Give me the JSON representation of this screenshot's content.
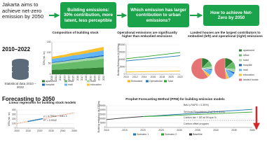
{
  "header": {
    "goal": "Jakarta aims to achieve net-zero emission by 2050",
    "steps": [
      "Building emissions: 30% contribution, more latent, less perceptible",
      "Which emission has larger contribution to urban emissions?",
      "How to achieve Net-Zero by 2050"
    ]
  },
  "section_1": {
    "title": "2010–2022",
    "source": "Statistical data 2010 – 2022"
  },
  "section_2": {
    "title": "Forecasting to 2050"
  },
  "charts": [
    {
      "type": "stacked_area",
      "title": "Composition of building stock",
      "y_label": "GFA (mil. m²)",
      "x": [
        2010,
        2011,
        2012,
        2013,
        2014,
        2015,
        2016,
        2017,
        2018,
        2019,
        2020,
        2021,
        2022
      ],
      "xlim": [
        2010,
        2022
      ],
      "xticks": [
        2010,
        2011,
        2012,
        2013,
        2014,
        2015,
        2016,
        2017,
        2018,
        2019,
        2020,
        2021,
        2022
      ],
      "ylim": [
        0,
        150
      ],
      "yticks": [
        0,
        50,
        100,
        150
      ],
      "series": [
        {
          "name": "apartment",
          "color": "#2e7d32",
          "values": [
            20,
            21,
            22,
            23,
            24,
            25,
            26,
            27,
            28,
            29,
            30,
            31,
            32
          ]
        },
        {
          "name": "office",
          "color": "#66bb6a",
          "values": [
            25,
            26,
            27,
            28,
            30,
            31,
            32,
            34,
            35,
            36,
            37,
            39,
            40
          ]
        },
        {
          "name": "hotel",
          "color": "#a5d6a7",
          "values": [
            8,
            8,
            9,
            9,
            9,
            10,
            10,
            10,
            11,
            11,
            11,
            12,
            12
          ]
        },
        {
          "name": "hospital",
          "color": "#1565c0",
          "values": [
            3,
            3,
            3,
            3,
            4,
            4,
            4,
            4,
            4,
            5,
            5,
            5,
            5
          ]
        },
        {
          "name": "mall",
          "color": "#64b5f6",
          "values": [
            15,
            16,
            16,
            17,
            17,
            18,
            18,
            19,
            19,
            20,
            21,
            21,
            22
          ]
        },
        {
          "name": "education",
          "color": "#fbc02d",
          "values": [
            10,
            10,
            11,
            11,
            12,
            12,
            13,
            13,
            14,
            14,
            15,
            15,
            16
          ]
        }
      ]
    },
    {
      "type": "line",
      "title": "Operational emissions are significantly higher than embodied emissions",
      "y_label": "Building Emissions (kt CO2eq)",
      "x": [
        2010,
        2011,
        2012,
        2013,
        2014,
        2015,
        2016,
        2017,
        2018,
        2019,
        2020,
        2021,
        2022
      ],
      "xlim": [
        2010,
        2022
      ],
      "xticks": [
        2010,
        2012,
        2014,
        2016,
        2018,
        2020,
        2022
      ],
      "ylim": [
        0,
        20000
      ],
      "yticks": [
        0,
        5000,
        10000,
        15000,
        20000
      ],
      "series": [
        {
          "name": "Embodied",
          "color": "#f2b705",
          "values": [
            1500,
            1550,
            1600,
            1650,
            1700,
            1750,
            1800,
            1850,
            1900,
            1950,
            2000,
            2050,
            2100
          ]
        },
        {
          "name": "Operational",
          "color": "#1f77b4",
          "values": [
            9000,
            9300,
            9600,
            9900,
            10200,
            10500,
            10800,
            11100,
            11400,
            11700,
            12000,
            12300,
            12600
          ]
        },
        {
          "name": "Total",
          "color": "#2ca02c",
          "values": [
            10500,
            10850,
            11200,
            11550,
            11900,
            12250,
            12600,
            12950,
            13300,
            13650,
            14000,
            14350,
            14700
          ]
        }
      ]
    },
    {
      "type": "pie",
      "title": "Landed houses are the largest contributors to embodied (left) and operational (right) emissions",
      "categories": [
        "apartment",
        "office",
        "hotel",
        "hospital",
        "mall",
        "education",
        "landed house"
      ],
      "colors": [
        "#2e7d32",
        "#66bb6a",
        "#a5d6a7",
        "#1565c0",
        "#64b5f6",
        "#fbc02d",
        "#e57373"
      ],
      "pies": [
        {
          "values": [
            12,
            10,
            4,
            2,
            8,
            4,
            60
          ]
        },
        {
          "values": [
            14,
            12,
            5,
            3,
            10,
            4,
            52
          ]
        }
      ]
    },
    {
      "type": "regression",
      "title": "Linear regression for building stock models",
      "y_label": "GFA (mil. m²)",
      "equation": "y = 4.7554x − 9411.3",
      "r2": "R² = 0.9942",
      "x": [
        2010,
        2011,
        2012,
        2013,
        2014,
        2015,
        2016,
        2017,
        2018,
        2019,
        2020,
        2021,
        2022
      ],
      "values": [
        147,
        152,
        157,
        162,
        166,
        171,
        176,
        181,
        185,
        190,
        195,
        200,
        204
      ],
      "color": "#1f77b4",
      "trend": {
        "x": [
          2000,
          2050
        ],
        "values": [
          99.5,
          337.3
        ],
        "color": "#e6550d"
      },
      "xlim": [
        2000,
        2050
      ],
      "xticks": [
        2000,
        2010,
        2020,
        2030,
        2040,
        2050
      ],
      "ylim": [
        0,
        400
      ],
      "yticks": [
        0,
        100,
        200,
        300,
        400
      ]
    },
    {
      "type": "line",
      "title": "Prophet Forecasting Method (PFM) for building emission models",
      "y_label": "Building emissions (kt CO2eq)",
      "x": [
        2010,
        2015,
        2020,
        2025,
        2030,
        2035,
        2040,
        2045,
        2050
      ],
      "xlim": [
        2010,
        2050
      ],
      "xticks": [
        2010,
        2015,
        2020,
        2025,
        2030,
        2035,
        2040,
        2045,
        2050
      ],
      "ylim": [
        0,
        25000
      ],
      "yticks": [
        0,
        5000,
        10000,
        15000,
        20000,
        25000
      ],
      "series": [
        {
          "name": "Scenario 1",
          "color": "#1f77b4",
          "values": [
            null,
            null,
            12500,
            13800,
            15200,
            16600,
            18000,
            19400,
            20800
          ]
        },
        {
          "name": "Scenario 2",
          "color": "#2ca02c",
          "values": [
            null,
            null,
            12500,
            13200,
            14100,
            15000,
            15900,
            16800,
            17700
          ]
        },
        {
          "name": "Baseline",
          "color": "#333333",
          "values": [
            9000,
            11000,
            12500,
            null,
            null,
            null,
            null,
            null,
            null
          ]
        }
      ],
      "annotations": [
        "BaU (-RAPS = 0.39%)",
        "Sectoral Regulations (PwPS=0.31%)",
        "Carbon tax + SR at 99 kpa %",
        "Carbon offset program"
      ]
    }
  ]
}
